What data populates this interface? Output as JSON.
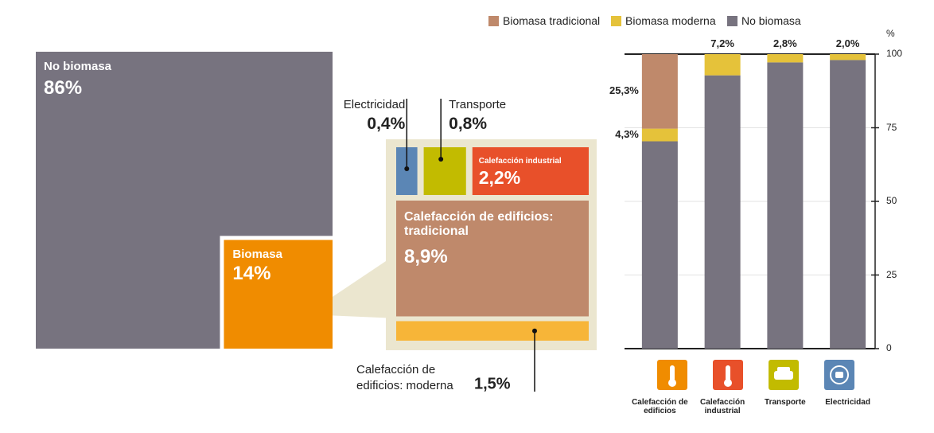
{
  "chart_data": [
    {
      "type": "treemap",
      "items": [
        {
          "name": "No biomasa",
          "value": 86,
          "value_label": "86%",
          "color": "#77737f"
        },
        {
          "name": "Biomasa",
          "value": 14,
          "value_label": "14%",
          "color": "#f08c00"
        }
      ],
      "breakdown": [
        {
          "name": "Electricidad",
          "value": 0.4,
          "value_label": "0,4%",
          "color": "#5b86b5"
        },
        {
          "name": "Transporte",
          "value": 0.8,
          "value_label": "0,8%",
          "color": "#c2bb00"
        },
        {
          "name": "Calefacción industrial",
          "value": 2.2,
          "value_label": "2,2%",
          "color": "#e8502a"
        },
        {
          "name": "Calefacción de edificios: tradicional",
          "value": 8.9,
          "value_label": "8,9%",
          "color": "#bf896b"
        },
        {
          "name": "Calefacción de edificios: moderna",
          "value": 1.5,
          "value_label": "1,5%",
          "color": "#f7b538"
        }
      ]
    },
    {
      "type": "bar",
      "stacked": true,
      "ylabel": "%",
      "categories": [
        "Calefacción de edificios",
        "Calefacción industrial",
        "Transporte",
        "Electricidad"
      ],
      "series": [
        {
          "name": "Biomasa tradicional",
          "color": "#bf896b",
          "values": [
            25.3,
            0,
            0,
            0
          ],
          "value_labels": [
            "25,3%",
            null,
            null,
            null
          ]
        },
        {
          "name": "Biomasa moderna",
          "color": "#e5c23a",
          "values": [
            4.3,
            7.2,
            2.8,
            2.0
          ],
          "value_labels": [
            "4,3%",
            "7,2%",
            "2,8%",
            "2,0%"
          ]
        },
        {
          "name": "No biomasa",
          "color": "#77737f",
          "values": [
            70.4,
            92.8,
            97.2,
            98.0
          ]
        }
      ],
      "ylim": [
        0,
        100
      ],
      "yticks": [
        0,
        25,
        50,
        75,
        100
      ],
      "grid": true,
      "legend": "top"
    }
  ]
}
